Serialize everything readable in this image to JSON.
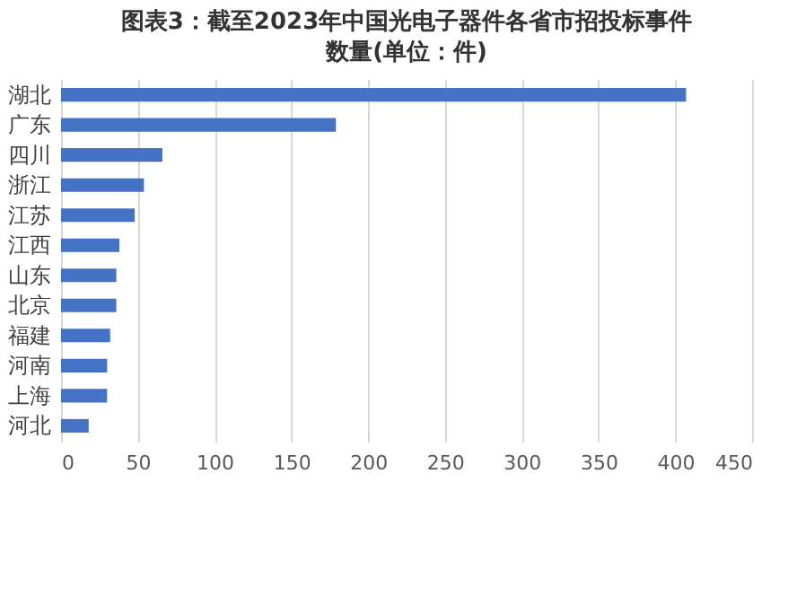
{
  "chart_data": {
    "type": "bar",
    "orientation": "horizontal",
    "title": "图表3：截至2023年中国光电子器件各省市招投标事件数量(单位：件)",
    "categories": [
      "湖北",
      "广东",
      "四川",
      "浙江",
      "江苏",
      "江西",
      "山东",
      "北京",
      "福建",
      "河南",
      "上海",
      "河北"
    ],
    "values": [
      407,
      179,
      66,
      54,
      48,
      38,
      36,
      36,
      32,
      30,
      30,
      18
    ],
    "color": "#4472c4",
    "xlim": [
      0,
      450
    ],
    "xticks": [
      0,
      50,
      100,
      150,
      200,
      250,
      300,
      350,
      400,
      450
    ],
    "grid": "x"
  }
}
